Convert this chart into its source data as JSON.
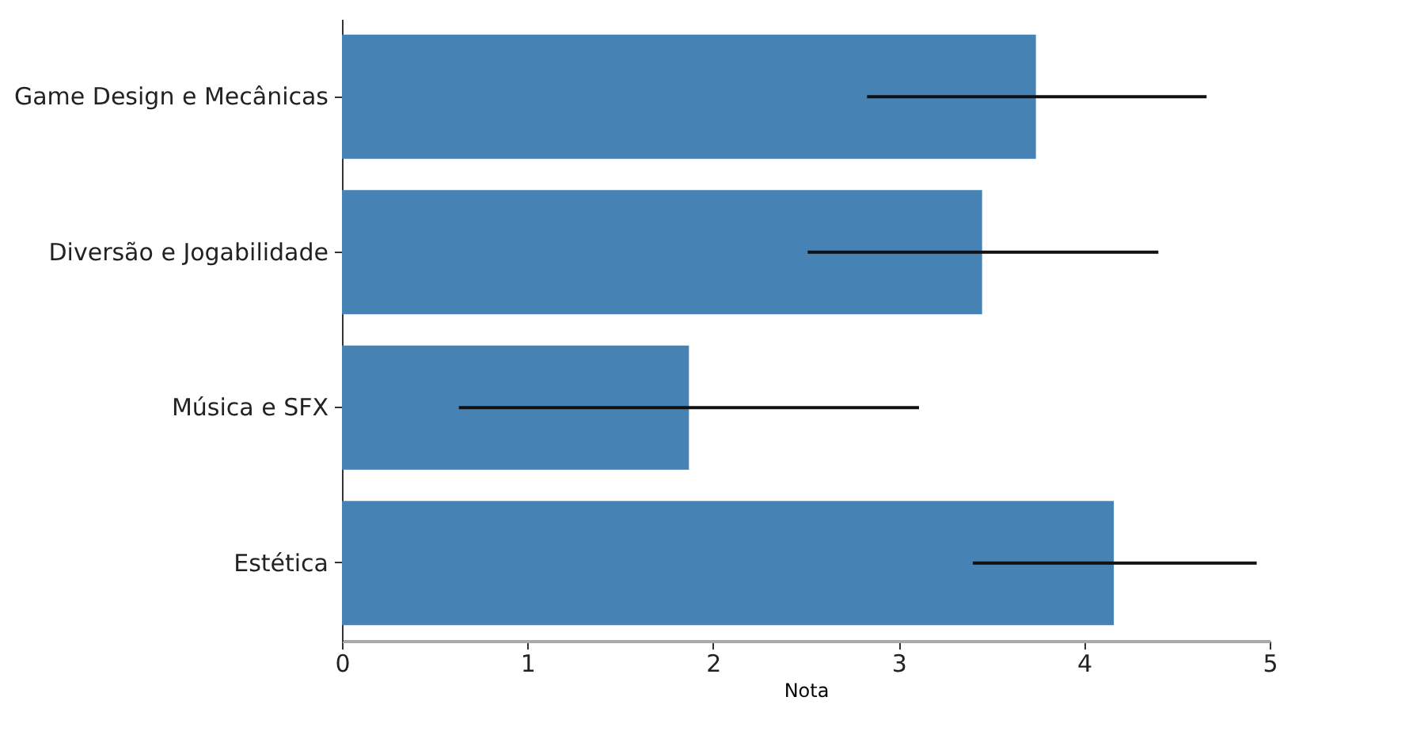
{
  "chart_data": {
    "type": "bar",
    "orientation": "horizontal",
    "xlabel": "Nota",
    "categories": [
      "Game Design e Mecânicas",
      "Diversão e Jogabilidade",
      "Música e SFX",
      "Estética"
    ],
    "values": [
      3.74,
      3.45,
      1.87,
      4.16
    ],
    "errors": [
      [
        2.83,
        4.66
      ],
      [
        2.51,
        4.4
      ],
      [
        0.63,
        3.11
      ],
      [
        3.4,
        4.93
      ]
    ],
    "color": "#4682b4",
    "xlim": [
      0,
      5
    ],
    "xticks": [
      0,
      1,
      2,
      3,
      4,
      5
    ]
  }
}
